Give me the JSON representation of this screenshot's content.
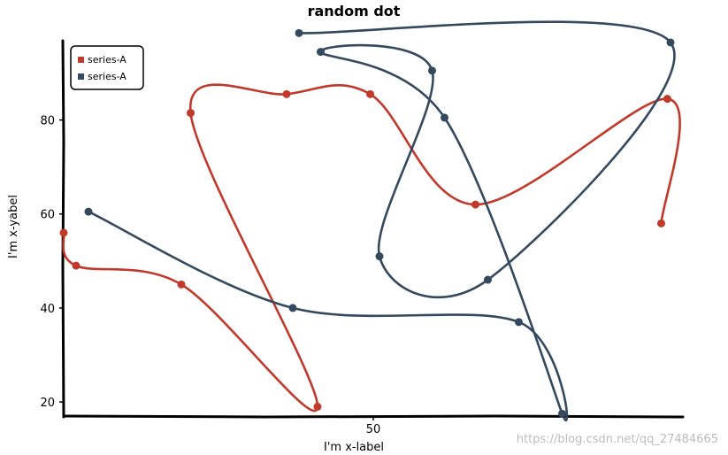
{
  "chart_data": {
    "type": "line",
    "title": "random dot",
    "xlabel": "I'm x-label",
    "ylabel": "I'm x-yabel",
    "xlim": [
      0,
      100
    ],
    "ylim": [
      17,
      98
    ],
    "xticks": [
      50
    ],
    "yticks": [
      20,
      40,
      60,
      80
    ],
    "legend": "top-left",
    "series": [
      {
        "name": "series-A",
        "color": "#c0392b",
        "points": [
          [
            0,
            56
          ],
          [
            2,
            49
          ],
          [
            19,
            45
          ],
          [
            41,
            19
          ],
          [
            20.5,
            81.5
          ],
          [
            36,
            85.5
          ],
          [
            49.5,
            85.5
          ],
          [
            66.5,
            62
          ],
          [
            97.5,
            84.5
          ],
          [
            96.5,
            58
          ]
        ]
      },
      {
        "name": "series-A",
        "color": "#34495e",
        "points": [
          [
            4,
            60.5
          ],
          [
            37,
            40
          ],
          [
            73.5,
            37
          ],
          [
            80.5,
            17.5
          ],
          [
            61.5,
            80.5
          ],
          [
            41.5,
            94.5
          ],
          [
            59.5,
            90.5
          ],
          [
            51,
            51
          ],
          [
            68.5,
            46
          ],
          [
            98,
            96.5
          ],
          [
            38,
            98.5
          ]
        ]
      }
    ]
  },
  "watermark": "https://blog.csdn.net/qq_27484665"
}
